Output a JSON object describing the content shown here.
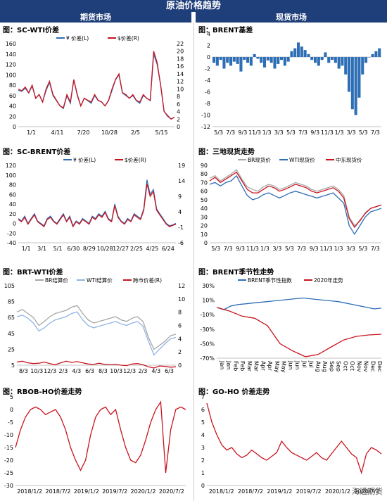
{
  "header": {
    "title": "原油价格趋势",
    "left": "期货市场",
    "right": "现货市场"
  },
  "watermark": "海通期货",
  "colors": {
    "blue": "#2e6eb5",
    "red": "#c8141e",
    "gray": "#a6a6a6",
    "lightblue": "#8fb4e3",
    "navy": "#1f3f7a"
  },
  "panels": [
    {
      "id": "p1",
      "title": "图：SC-WTI价差",
      "legend": [
        "¥ 价差(L)",
        "$价差(R)"
      ],
      "yleft": [
        "160",
        "140",
        "120",
        "100",
        "80",
        "60",
        "40",
        "20",
        "0"
      ],
      "yright": [
        "22",
        "20",
        "18",
        "16",
        "14",
        "12",
        "10",
        "8",
        "6",
        "4",
        "2",
        "0"
      ],
      "xticks": [
        "1/1",
        "4/11",
        "7/20",
        "10/28",
        "2/5",
        "5/15"
      ],
      "chart_data": {
        "type": "line",
        "y_left_range": [
          0,
          160
        ],
        "y_right_range": [
          0,
          22
        ],
        "series": [
          {
            "name": "¥ 价差(L)",
            "axis": "left",
            "values": [
              70,
              68,
              74,
              65,
              78,
              55,
              62,
              48,
              70,
              85,
              60,
              50,
              40,
              35,
              60,
              45,
              90,
              60,
              40,
              55,
              50,
              45,
              60,
              50,
              48,
              40,
              50,
              70,
              90,
              100,
              65,
              60,
              55,
              60,
              50,
              45,
              60,
              55,
              50,
              140,
              120,
              80,
              30,
              20,
              15,
              18
            ]
          },
          {
            "name": "$价差(R)",
            "axis": "right",
            "values": [
              10,
              9.5,
              10.5,
              9,
              11,
              7.5,
              8.5,
              6.5,
              10,
              12,
              8.5,
              7,
              5.5,
              5,
              8.5,
              6.5,
              12.5,
              8.5,
              5.5,
              7.5,
              7,
              6.5,
              8.5,
              7,
              6.5,
              5.5,
              7,
              10,
              12.5,
              14,
              9,
              8.5,
              7.5,
              8.5,
              7,
              6.5,
              8.5,
              7.5,
              7,
              20,
              17,
              11,
              4,
              3,
              2,
              2.5
            ]
          }
        ]
      }
    },
    {
      "id": "p2",
      "title": "图：BRENT基差",
      "legend": [],
      "yleft": [
        "4",
        "2",
        "0",
        "-2",
        "-4",
        "-6",
        "-8",
        "-10",
        "-12"
      ],
      "yright": [],
      "xticks": [
        "5/3",
        "7/3",
        "9/3",
        "11/3",
        "1/3",
        "3/3",
        "5/3",
        "7/3",
        "9/3",
        "11/3",
        "1/3",
        "3/3",
        "5/3",
        "7/3"
      ],
      "chart_data": {
        "type": "bar",
        "y_range": [
          -12,
          4
        ],
        "series": [
          {
            "name": "",
            "values": [
              -1,
              -1.5,
              -0.5,
              -2,
              -1,
              -1.5,
              -0.8,
              -1.2,
              -2.5,
              -0.5,
              -1,
              -1.5,
              0.5,
              -0.3,
              -1,
              -1.8,
              -0.6,
              -1,
              -2,
              -1.2,
              -0.5,
              -1.5,
              -0.8,
              1,
              1.5,
              2.5,
              1.8,
              1.2,
              0.5,
              -0.5,
              -1,
              -1.5,
              -0.5,
              0.8,
              -1,
              -0.5,
              -1,
              -2,
              -1.5,
              -3,
              -6,
              -9,
              -10,
              -7,
              -3,
              -1,
              0,
              0.5,
              1,
              1.5
            ]
          }
        ]
      }
    },
    {
      "id": "p3",
      "title": "图：SC-BRENT价差",
      "legend": [
        "¥ 价差(L)",
        "$价差(R)"
      ],
      "yleft": [
        "120",
        "100",
        "80",
        "60",
        "40",
        "20",
        "0",
        "-20",
        "-40"
      ],
      "yright": [
        "19",
        "14",
        "9",
        "4",
        "-1",
        "-6"
      ],
      "xticks": [
        "1/1",
        "3/1",
        "5/1",
        "6/30",
        "8/29",
        "10/28",
        "12/27",
        "2/25",
        "4/25",
        "6/24"
      ],
      "chart_data": {
        "type": "line",
        "y_left_range": [
          -40,
          120
        ],
        "y_right_range": [
          -6,
          19
        ],
        "series": [
          {
            "name": "¥ 价差(L)",
            "axis": "left",
            "values": [
              10,
              5,
              15,
              0,
              10,
              20,
              5,
              0,
              -5,
              10,
              15,
              5,
              0,
              10,
              20,
              5,
              15,
              -5,
              5,
              0,
              10,
              5,
              0,
              15,
              10,
              20,
              15,
              25,
              10,
              5,
              40,
              15,
              5,
              0,
              10,
              5,
              20,
              15,
              10,
              30,
              90,
              60,
              70,
              30,
              20,
              10,
              0,
              -5,
              -3,
              0
            ]
          },
          {
            "name": "$价差(R)",
            "axis": "right",
            "values": [
              1.5,
              0.8,
              2.2,
              0,
              1.5,
              3,
              0.8,
              0,
              -0.8,
              1.5,
              2.2,
              0.8,
              0,
              1.5,
              3,
              0.8,
              2.2,
              -0.8,
              0.8,
              0,
              1.5,
              0.8,
              0,
              2.2,
              1.5,
              3,
              2.2,
              3.8,
              1.5,
              0.8,
              6,
              2.2,
              0.8,
              0,
              1.5,
              0.8,
              3,
              2.2,
              1.5,
              4.5,
              13,
              9,
              10.5,
              4.5,
              3,
              1.5,
              0,
              -0.8,
              -0.4,
              0
            ]
          }
        ]
      }
    },
    {
      "id": "p4",
      "title": "图：三地现货走势",
      "legend": [
        "BR现货价",
        "WTI现货价",
        "中东现货价"
      ],
      "yleft": [
        "90",
        "80",
        "70",
        "60",
        "50",
        "40",
        "30",
        "20",
        "10",
        "0"
      ],
      "yright": [],
      "xticks": [
        "5/3",
        "7/3",
        "9/3",
        "11/3",
        "1/3",
        "3/3",
        "5/3",
        "7/3",
        "9/3",
        "11/3",
        "1/3",
        "3/3",
        "5/3",
        "7/3"
      ],
      "chart_data": {
        "type": "line",
        "y_range": [
          0,
          90
        ],
        "series": [
          {
            "name": "BR现货价",
            "values": [
              75,
              78,
              72,
              76,
              80,
              85,
              74,
              65,
              62,
              60,
              65,
              68,
              66,
              62,
              64,
              67,
              70,
              68,
              66,
              62,
              60,
              62,
              64,
              66,
              62,
              55,
              30,
              20,
              25,
              35,
              40,
              42,
              44
            ]
          },
          {
            "name": "WTI现货价",
            "values": [
              68,
              70,
              66,
              70,
              72,
              78,
              66,
              55,
              50,
              52,
              56,
              58,
              55,
              52,
              55,
              58,
              60,
              58,
              56,
              54,
              52,
              54,
              56,
              58,
              52,
              46,
              20,
              10,
              20,
              30,
              36,
              38,
              40
            ]
          },
          {
            "name": "中东现货价",
            "values": [
              72,
              76,
              70,
              74,
              78,
              82,
              72,
              62,
              58,
              58,
              62,
              66,
              64,
              60,
              62,
              65,
              68,
              66,
              64,
              60,
              58,
              60,
              62,
              64,
              60,
              52,
              28,
              18,
              26,
              34,
              40,
              42,
              44
            ]
          }
        ]
      }
    },
    {
      "id": "p5",
      "title": "图：BRT-WTI价差",
      "legend": [
        "BR结算价",
        "WTI结算价",
        "跨市价差(R)"
      ],
      "yleft": [
        "105",
        "85",
        "65",
        "45",
        "25",
        "5"
      ],
      "yright": [
        "12",
        "10",
        "8",
        "6",
        "4",
        "2",
        "0"
      ],
      "xticks": [
        "8/3",
        "10/3",
        "12/3",
        "2/3",
        "4/3",
        "6/3",
        "8/3",
        "10/3",
        "12/3",
        "2/3",
        "4/3",
        "6/3"
      ],
      "chart_data": {
        "type": "line",
        "y_left_range": [
          5,
          105
        ],
        "y_right_range": [
          0,
          12
        ],
        "series": [
          {
            "name": "BR结算价",
            "values": [
              72,
              75,
              70,
              65,
              55,
              60,
              66,
              70,
              72,
              74,
              78,
              80,
              70,
              62,
              58,
              60,
              62,
              64,
              66,
              62,
              60,
              64,
              66,
              60,
              40,
              25,
              30,
              35,
              42,
              44
            ]
          },
          {
            "name": "WTI结算价",
            "values": [
              66,
              68,
              64,
              58,
              48,
              52,
              58,
              62,
              64,
              66,
              70,
              72,
              62,
              55,
              52,
              54,
              56,
              58,
              60,
              57,
              55,
              58,
              60,
              54,
              35,
              18,
              25,
              32,
              38,
              40
            ]
          },
          {
            "name": "跨市价差(R)",
            "values": [
              9,
              10,
              8,
              7,
              7.5,
              9,
              7,
              5.5,
              8,
              10,
              8.5,
              9.5,
              8,
              6.5,
              6,
              7.5,
              6,
              5.5,
              6,
              5,
              4.5,
              6.5,
              7,
              5.5,
              3,
              1.5,
              4,
              3.5,
              2.5,
              3
            ]
          }
        ]
      }
    },
    {
      "id": "p6",
      "title": "图：BRENT季节性走势",
      "legend": [
        "BRENT季节性指数",
        "2020年走势"
      ],
      "yleft": [
        "30%",
        "10%",
        "-10%",
        "-30%",
        "-50%",
        "-70%"
      ],
      "yright": [],
      "xticks": [
        "Jan",
        "Jan",
        "Feb",
        "Feb",
        "Mar",
        "Mar",
        "Apr",
        "Apr",
        "May",
        "May",
        "Jun",
        "Jun",
        "Jul",
        "Jul",
        "Aug",
        "Aug",
        "Sep",
        "Sep",
        "Oct",
        "Oct",
        "Nov",
        "Nov",
        "Dec",
        "Dec"
      ],
      "chart_data": {
        "type": "line",
        "y_range": [
          -70,
          30
        ],
        "series": [
          {
            "name": "BRENT季节性指数",
            "values": [
              0,
              -3,
              2,
              4,
              5,
              6,
              7,
              8,
              9,
              10,
              11,
              12,
              13,
              12,
              11,
              10,
              9,
              8,
              6,
              4,
              2,
              0,
              -2,
              -1
            ]
          },
          {
            "name": "2020年走势",
            "values": [
              0,
              -5,
              -12,
              -15,
              -25,
              -50,
              -60,
              -68,
              -65,
              -55,
              -45,
              -40,
              -38,
              -37
            ]
          }
        ]
      }
    },
    {
      "id": "p7",
      "title": "图：RBOB-HO价差走势",
      "legend": [],
      "yleft": [
        "5",
        "0",
        "-5",
        "-10",
        "-15",
        "-20",
        "-25",
        "-30"
      ],
      "yright": [],
      "xticks": [
        "2018/1/2",
        "2018/7/2",
        "2019/1/2",
        "2019/7/2",
        "2020/1/2",
        "2020/7/2"
      ],
      "chart_data": {
        "type": "line",
        "y_range": [
          -30,
          5
        ],
        "series": [
          {
            "name": "",
            "values": [
              -15,
              -8,
              -3,
              0,
              1,
              0,
              -2,
              -1,
              0,
              -3,
              -8,
              -15,
              -20,
              -24,
              -20,
              -10,
              -3,
              0,
              1,
              -2,
              0,
              -8,
              -15,
              -20,
              -21,
              -18,
              -12,
              -5,
              0,
              3,
              -25,
              -8,
              0,
              1,
              0
            ]
          }
        ]
      }
    },
    {
      "id": "p8",
      "title": "图：GO-HO 价差走势",
      "legend": [],
      "yleft": [
        "7",
        "6",
        "5",
        "4",
        "3",
        "2",
        "1",
        "0"
      ],
      "yright": [],
      "xticks": [
        "2018/1/2",
        "2018/7/2",
        "2019/1/2",
        "2019/7/2",
        "2020/1/2",
        "2020/7/2"
      ],
      "chart_data": {
        "type": "line",
        "y_range": [
          0,
          7
        ],
        "series": [
          {
            "name": "",
            "values": [
              6.5,
              5,
              4,
              3.2,
              2.8,
              3,
              2.5,
              2.2,
              2.4,
              2.8,
              2.5,
              2.2,
              2,
              2.3,
              2.6,
              3.5,
              3,
              2.6,
              2.4,
              2.2,
              2,
              2.3,
              2.6,
              2.2,
              2,
              2.5,
              3,
              3.5,
              3,
              2.5,
              2.2,
              1,
              2.5,
              3,
              2.8,
              2.5
            ]
          }
        ]
      }
    }
  ]
}
